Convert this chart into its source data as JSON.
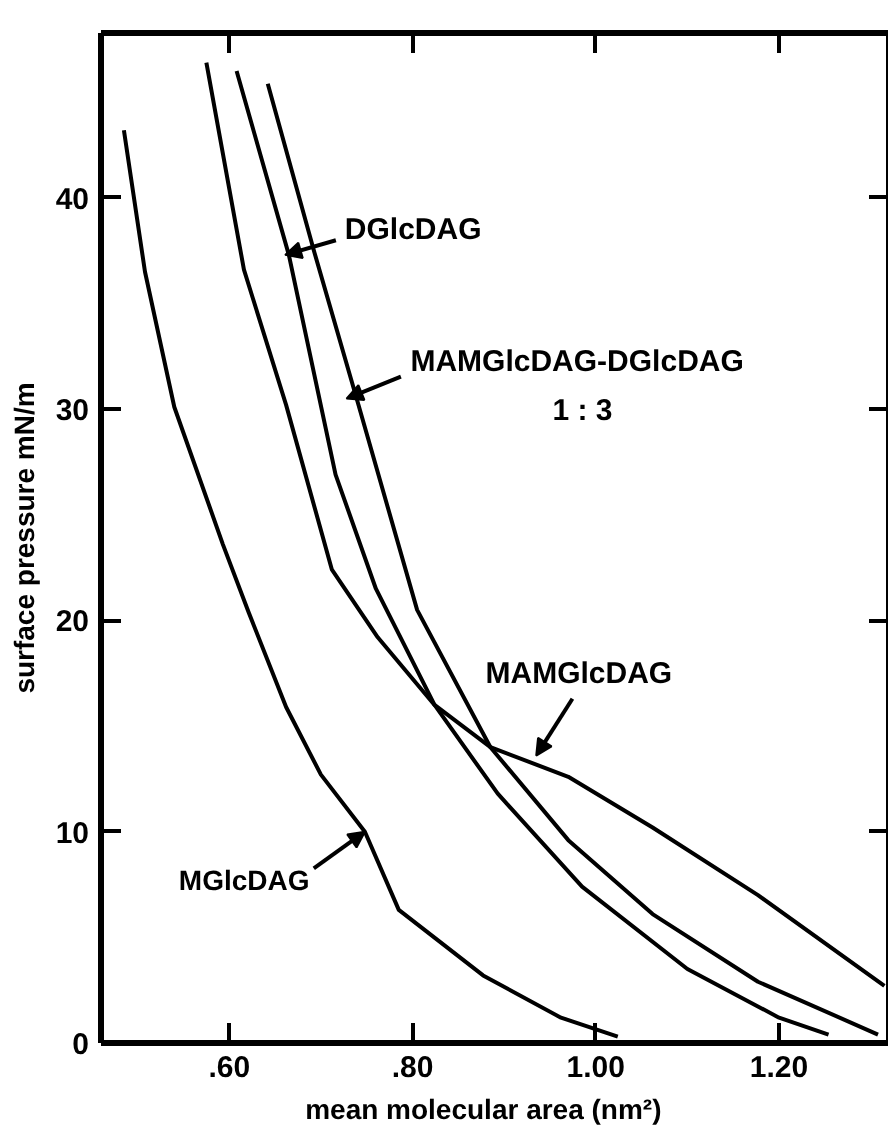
{
  "chart_data": {
    "type": "line",
    "xlabel": "mean  molecular  area  (nm²)",
    "ylabel": "surface pressure mN/m",
    "xlim": [
      0.46,
      1.32
    ],
    "ylim": [
      0,
      47.8
    ],
    "xticks": [
      {
        "value": 0.6,
        "label": ".60"
      },
      {
        "value": 0.8,
        "label": ".80"
      },
      {
        "value": 1.0,
        "label": "1.00"
      },
      {
        "value": 1.2,
        "label": "1.20"
      }
    ],
    "yticks": [
      0,
      10,
      20,
      30,
      40
    ],
    "grid": false,
    "marker": "none",
    "line_style": "solid",
    "series": [
      {
        "color": "#000000",
        "x": [
          0.485,
          0.508,
          0.54,
          0.593,
          0.621,
          0.662,
          0.7,
          0.748,
          0.785,
          0.877,
          0.962,
          1.024
        ],
        "values": [
          43.2,
          36.5,
          30.1,
          23.6,
          20.4,
          15.9,
          12.7,
          10.0,
          6.3,
          3.2,
          1.2,
          0.3
        ]
      },
      {
        "color": "#000000",
        "x": [
          0.575,
          0.616,
          0.662,
          0.712,
          0.762,
          0.824,
          0.885,
          0.97,
          1.062,
          1.177,
          1.315
        ],
        "values": [
          46.4,
          36.6,
          30.2,
          22.4,
          19.2,
          16.0,
          14.0,
          12.6,
          10.2,
          7.0,
          2.7
        ]
      },
      {
        "color": "#000000",
        "x": [
          0.608,
          0.665,
          0.716,
          0.76,
          0.824,
          0.893,
          0.985,
          1.1,
          1.2,
          1.254
        ],
        "values": [
          46.0,
          37.3,
          26.9,
          21.5,
          16.0,
          11.8,
          7.4,
          3.5,
          1.2,
          0.4
        ]
      },
      {
        "color": "#000000",
        "x": [
          0.642,
          0.693,
          0.739,
          0.805,
          0.885,
          0.97,
          1.062,
          1.177,
          1.308
        ],
        "values": [
          45.4,
          37.4,
          30.5,
          20.5,
          14.0,
          9.6,
          6.1,
          2.9,
          0.4
        ]
      }
    ],
    "annotations": [
      {
        "text": "MGlcDAG",
        "x": 0.748,
        "y": 10.0
      },
      {
        "text": "MAMGlcDAG",
        "x": 0.935,
        "y": 13.6
      },
      {
        "text": "DGlcDAG",
        "x": 0.661,
        "y": 37.3
      },
      {
        "text": "MAMGlcDAG-DGlcDAG\n1 : 3",
        "x": 0.728,
        "y": 30.5
      }
    ]
  }
}
